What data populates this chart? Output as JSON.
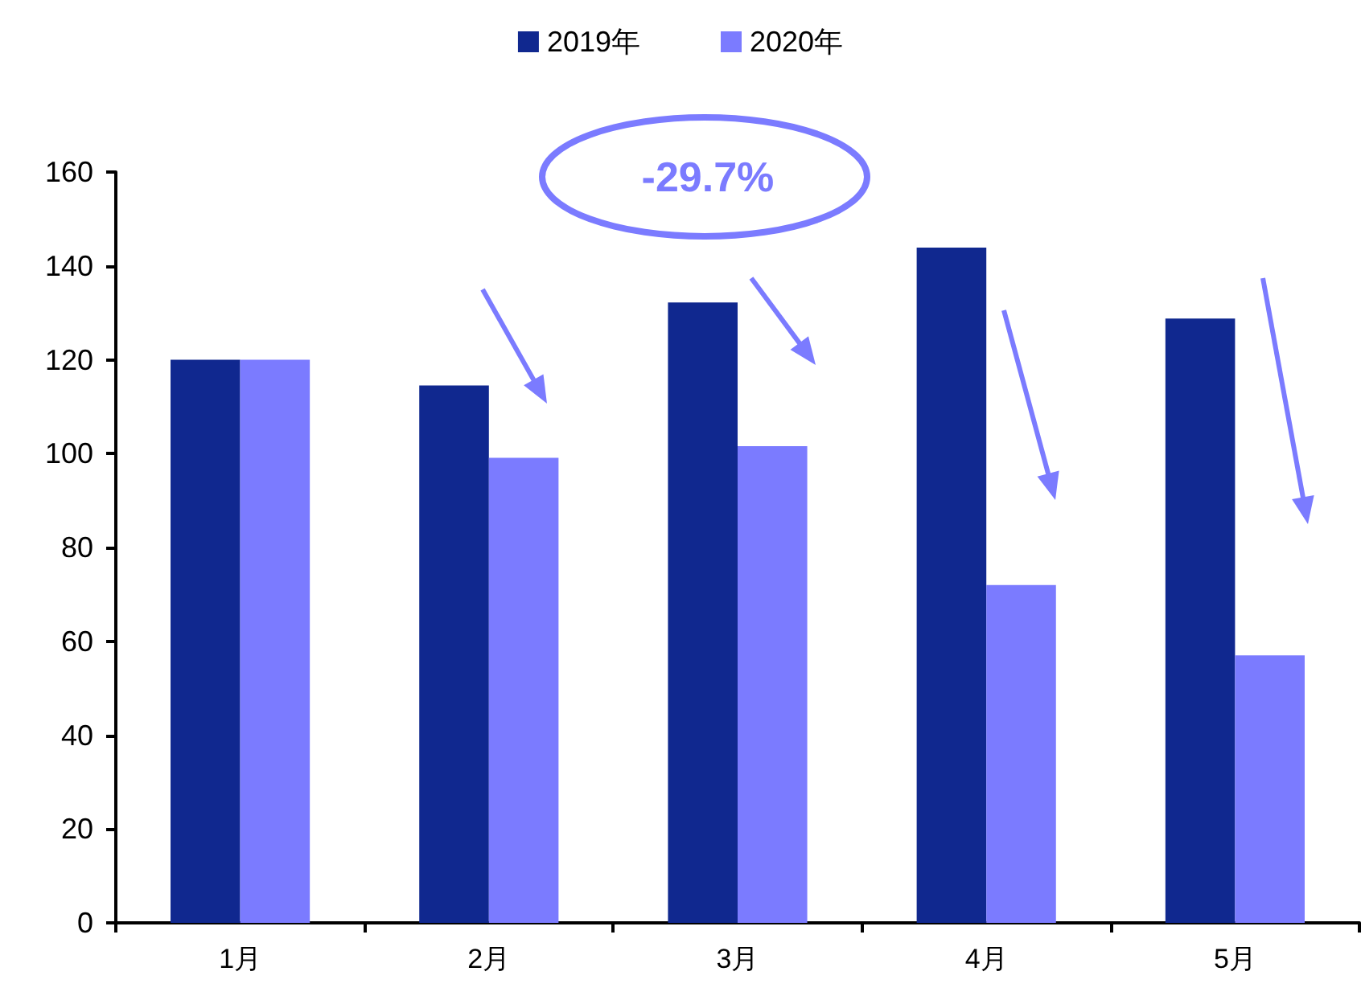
{
  "chart_data": {
    "type": "bar",
    "categories": [
      "1月",
      "2月",
      "3月",
      "4月",
      "5月"
    ],
    "series": [
      {
        "name": "2019年",
        "color": "#10288f",
        "values": [
          120,
          114.5,
          132.2,
          143.9,
          128.8
        ]
      },
      {
        "name": "2020年",
        "color": "#7b7bff",
        "values": [
          120,
          99.1,
          101.6,
          72.0,
          57.0
        ]
      }
    ],
    "ylim": [
      0,
      160
    ],
    "yticks": [
      0,
      20,
      40,
      60,
      80,
      100,
      120,
      140,
      160
    ],
    "grid": false,
    "legend": "top",
    "annotations": [
      "-29.7%"
    ]
  }
}
